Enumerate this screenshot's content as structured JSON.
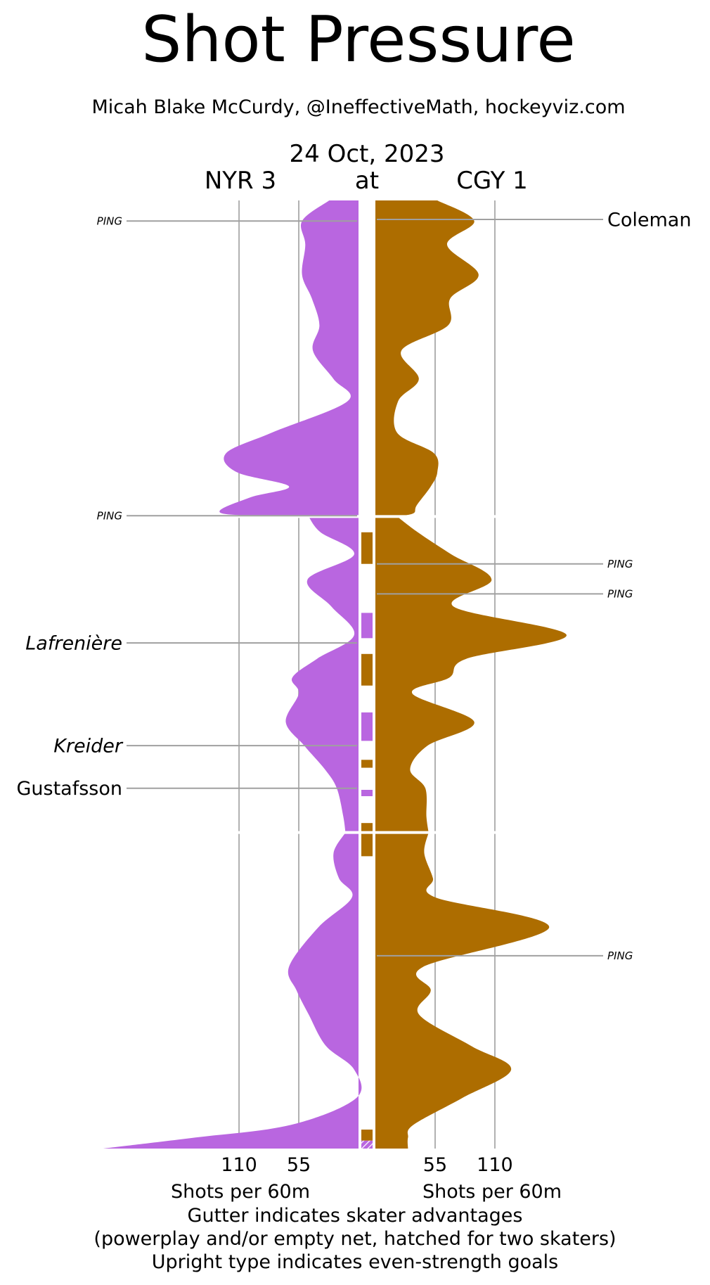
{
  "chart_data": {
    "type": "area",
    "title": "Shot Pressure",
    "subtitle": "Micah Blake McCurdy, @IneffectiveMath, hockeyviz.com",
    "date": "24 Oct, 2023",
    "at_label": "at",
    "away": {
      "label": "NYR 3",
      "color": "#b966e0"
    },
    "home": {
      "label": "CGY 1",
      "color": "#ad6d00"
    },
    "x_ticks": [
      110,
      55
    ],
    "xlabel": "Shots per 60m",
    "xlim": [
      0,
      240
    ],
    "y_range_minutes": [
      0,
      60
    ],
    "period_breaks": [
      20,
      40
    ],
    "footnote": [
      "Gutter indicates skater advantages",
      "(powerplay and/or empty net, hatched for two skaters)",
      "Upright type indicates even-strength goals"
    ],
    "series": [
      {
        "name": "NYR 3",
        "values_minute_rate": [
          [
            0,
            27
          ],
          [
            1.3,
            52
          ],
          [
            2.8,
            49
          ],
          [
            4.7,
            52
          ],
          [
            6.2,
            43
          ],
          [
            7.9,
            36
          ],
          [
            9.5,
            42
          ],
          [
            11.3,
            23
          ],
          [
            12.7,
            10
          ],
          [
            14.7,
            80
          ],
          [
            16.0,
            122
          ],
          [
            17.2,
            112
          ],
          [
            18.1,
            64
          ],
          [
            18.8,
            100
          ],
          [
            19.8,
            126
          ],
          [
            20.0,
            46
          ],
          [
            21.0,
            35
          ],
          [
            22.4,
            4
          ],
          [
            24.0,
            47
          ],
          [
            25.7,
            25
          ],
          [
            27.5,
            4
          ],
          [
            29.0,
            38
          ],
          [
            30.2,
            61
          ],
          [
            31.2,
            55
          ],
          [
            33.0,
            67
          ],
          [
            34.5,
            50
          ],
          [
            36.0,
            31
          ],
          [
            37.2,
            20
          ],
          [
            39.0,
            14
          ],
          [
            40.0,
            12
          ],
          [
            41.3,
            23
          ],
          [
            42.9,
            18
          ],
          [
            44.1,
            6
          ],
          [
            46.0,
            37
          ],
          [
            48.5,
            64
          ],
          [
            50.0,
            57
          ],
          [
            51.5,
            46
          ],
          [
            53.5,
            30
          ],
          [
            55.0,
            4
          ],
          [
            56.8,
            2
          ],
          [
            58.5,
            62
          ],
          [
            59.3,
            150
          ],
          [
            60.0,
            235
          ]
        ]
      },
      {
        "name": "CGY 1",
        "values_minute_rate": [
          [
            0,
            57
          ],
          [
            1.3,
            91
          ],
          [
            2.8,
            66
          ],
          [
            4.7,
            95
          ],
          [
            6.2,
            69
          ],
          [
            7.9,
            67
          ],
          [
            9.5,
            24
          ],
          [
            11.3,
            40
          ],
          [
            12.7,
            21
          ],
          [
            14.7,
            20
          ],
          [
            16.0,
            54
          ],
          [
            17.2,
            57
          ],
          [
            18.1,
            51
          ],
          [
            19.3,
            38
          ],
          [
            19.8,
            35
          ],
          [
            20.0,
            20
          ],
          [
            21.0,
            39
          ],
          [
            22.4,
            70
          ],
          [
            24.0,
            107
          ],
          [
            25.7,
            72
          ],
          [
            27.5,
            176
          ],
          [
            29.0,
            84
          ],
          [
            30.2,
            68
          ],
          [
            31.2,
            34
          ],
          [
            33.0,
            91
          ],
          [
            34.5,
            48
          ],
          [
            36.0,
            32
          ],
          [
            37.2,
            46
          ],
          [
            39.0,
            47
          ],
          [
            40.0,
            49
          ],
          [
            41.3,
            45
          ],
          [
            42.9,
            53
          ],
          [
            44.1,
            55
          ],
          [
            46.0,
            160
          ],
          [
            48.5,
            44
          ],
          [
            50.0,
            51
          ],
          [
            51.5,
            40
          ],
          [
            53.5,
            88
          ],
          [
            55.0,
            125
          ],
          [
            56.8,
            80
          ],
          [
            58.5,
            35
          ],
          [
            59.3,
            30
          ],
          [
            60.0,
            30
          ]
        ]
      }
    ],
    "gutter": [
      {
        "team": "CGY 1",
        "start": 21.0,
        "end": 23.0,
        "hatched": false
      },
      {
        "team": "NYR 3",
        "start": 26.1,
        "end": 27.7,
        "hatched": false
      },
      {
        "team": "CGY 1",
        "start": 28.7,
        "end": 30.7,
        "hatched": false
      },
      {
        "team": "NYR 3",
        "start": 32.4,
        "end": 34.2,
        "hatched": false
      },
      {
        "team": "CGY 1",
        "start": 35.4,
        "end": 35.9,
        "hatched": false
      },
      {
        "team": "NYR 3",
        "start": 37.3,
        "end": 37.7,
        "hatched": false
      },
      {
        "team": "CGY 1",
        "start": 39.4,
        "end": 40.0,
        "hatched": false
      },
      {
        "team": "CGY 1",
        "start": 40.0,
        "end": 41.5,
        "hatched": false
      },
      {
        "team": "CGY 1",
        "start": 58.8,
        "end": 59.5,
        "hatched": false
      },
      {
        "team": "NYR 3",
        "start": 59.5,
        "end": 60.0,
        "hatched": true
      }
    ],
    "events": [
      {
        "team": "NYR 3",
        "minute": 1.3,
        "label": "PING",
        "even_strength": false
      },
      {
        "team": "NYR 3",
        "minute": 19.95,
        "label": "PING",
        "even_strength": false
      },
      {
        "team": "NYR 3",
        "minute": 28.0,
        "label": "Lafrenière",
        "even_strength": false
      },
      {
        "team": "NYR 3",
        "minute": 34.5,
        "label": "Kreider",
        "even_strength": false
      },
      {
        "team": "NYR 3",
        "minute": 37.2,
        "label": "Gustafsson",
        "even_strength": true
      },
      {
        "team": "CGY 1",
        "minute": 1.2,
        "label": "Coleman",
        "even_strength": true
      },
      {
        "team": "CGY 1",
        "minute": 23.0,
        "label": "PING",
        "even_strength": false
      },
      {
        "team": "CGY 1",
        "minute": 24.9,
        "label": "PING",
        "even_strength": false
      },
      {
        "team": "CGY 1",
        "minute": 47.8,
        "label": "PING",
        "even_strength": false
      }
    ]
  }
}
